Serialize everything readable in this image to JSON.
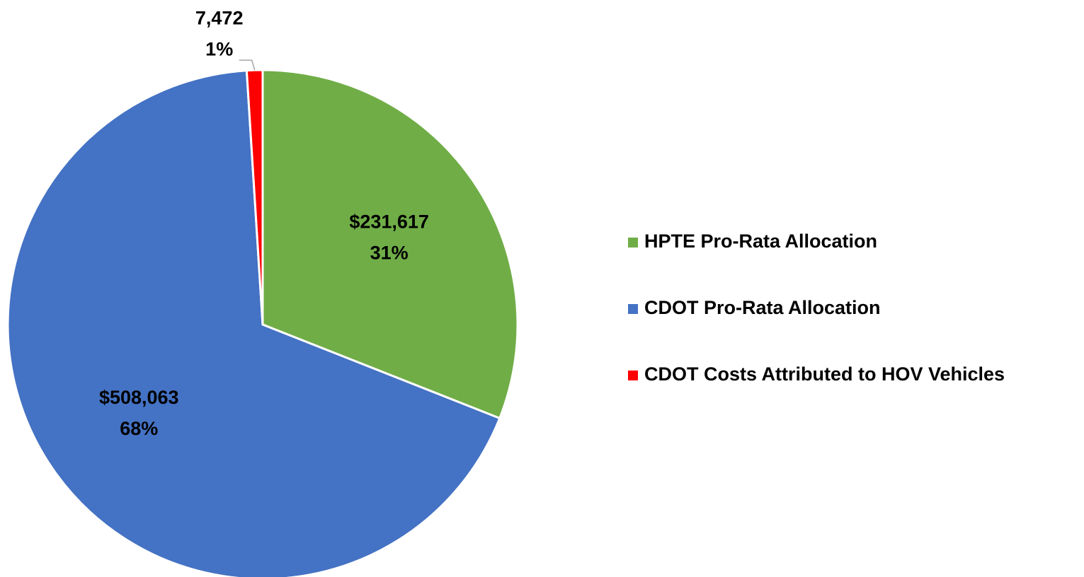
{
  "chart_data": {
    "type": "pie",
    "categories": [
      "HPTE Pro-Rata Allocation",
      "CDOT Pro-Rata Allocation",
      "CDOT Costs Attributed to HOV Vehicles"
    ],
    "values": [
      231617,
      508063,
      7472
    ],
    "value_labels": [
      "$231,617",
      "$508,063",
      "7,472"
    ],
    "percentages": [
      31,
      68,
      1
    ],
    "percentage_labels": [
      "31%",
      "68%",
      "1%"
    ],
    "colors": [
      "#70ad47",
      "#4472c4",
      "#ff0000"
    ],
    "legend": "right"
  }
}
